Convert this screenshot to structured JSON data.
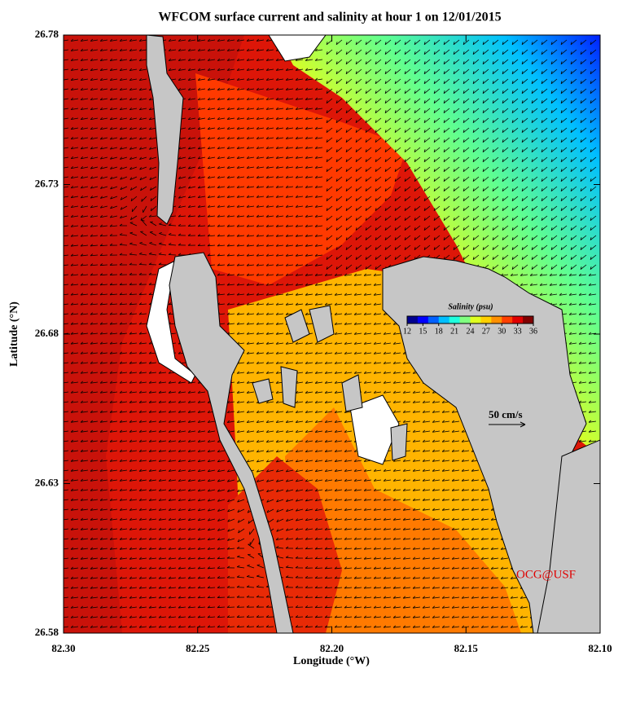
{
  "map": {
    "title": "WFCOM surface current and salinity at hour 1 on 12/01/2015",
    "xlabel": "Longitude (°W)",
    "ylabel": "Latitude (°N)",
    "xlim": [
      82.3,
      82.1
    ],
    "ylim": [
      26.58,
      26.78
    ],
    "xticks": [
      {
        "value": 82.3,
        "label": "82.30"
      },
      82.25,
      {
        "value": 82.2,
        "label": "82.20"
      },
      82.15,
      {
        "value": 82.1,
        "label": "82.10"
      }
    ],
    "yticks": [
      26.78,
      26.73,
      26.68,
      26.63,
      26.58
    ],
    "colorbar": {
      "title": "Salinity (psu)",
      "range": [
        12,
        36
      ],
      "ticks": [
        12,
        15,
        18,
        21,
        24,
        27,
        30,
        33,
        36
      ],
      "colors": [
        "#00008f",
        "#0000ff",
        "#0060ff",
        "#00bfff",
        "#20ffdf",
        "#80ff80",
        "#dfff20",
        "#ffd000",
        "#ff9000",
        "#ff4000",
        "#e00000",
        "#800000"
      ]
    },
    "scale_label": "50 cm/s",
    "credit": "OCG@USF"
  }
}
